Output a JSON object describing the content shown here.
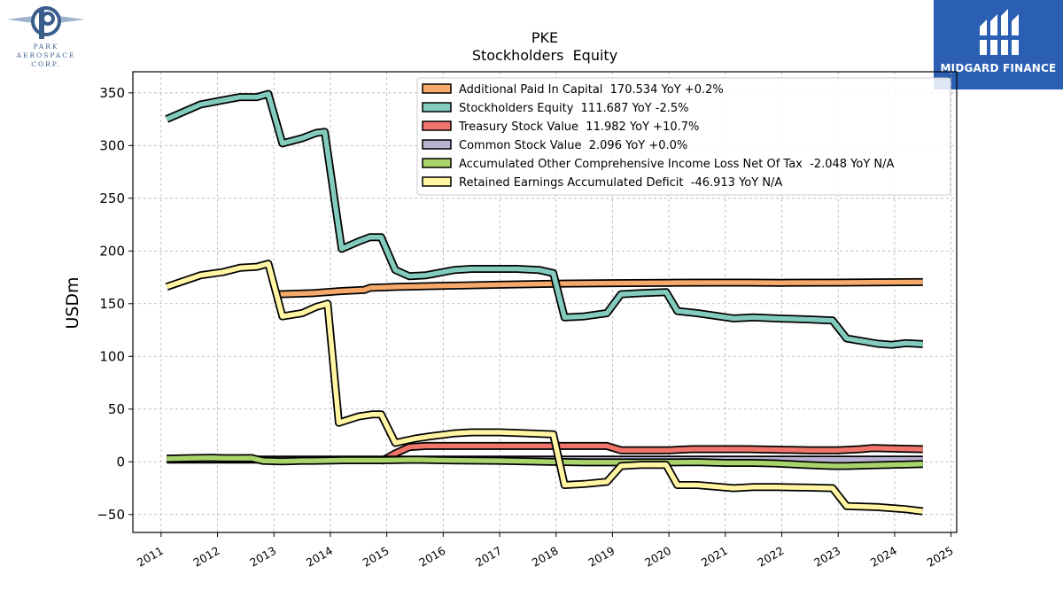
{
  "logos": {
    "left_lines": [
      "PARK",
      "AEROSPACE",
      "CORP."
    ],
    "right_text": "MIDGARD FINANCE"
  },
  "colors": {
    "apic": "#f5a96a",
    "se": "#82cbbd",
    "treasury": "#f0766c",
    "common": "#b7b0d0",
    "aoci": "#a9d46b",
    "re": "#fff5a3",
    "brand_blue": "#2b5fb4"
  },
  "chart_data": {
    "type": "line",
    "title": "PKE",
    "subtitle": "Stockholders  Equity",
    "xlabel": "",
    "ylabel": "USDm",
    "xlim": [
      2010.5,
      2025.1
    ],
    "ylim": [
      -67,
      370
    ],
    "x_ticks": [
      2011,
      2012,
      2013,
      2014,
      2015,
      2016,
      2017,
      2018,
      2019,
      2020,
      2021,
      2022,
      2023,
      2024,
      2025
    ],
    "y_ticks": [
      -50,
      0,
      50,
      100,
      150,
      200,
      250,
      300,
      350
    ],
    "grid": true,
    "legend_position": "top-right",
    "series": [
      {
        "name": "Additional Paid In Capital  170.534 YoY +0.2%",
        "color_key": "apic",
        "points": [
          [
            2013.1,
            159
          ],
          [
            2013.7,
            160
          ],
          [
            2014.2,
            162
          ],
          [
            2014.6,
            163
          ],
          [
            2014.7,
            165
          ],
          [
            2015.2,
            166
          ],
          [
            2016,
            167
          ],
          [
            2017,
            168
          ],
          [
            2018,
            169
          ],
          [
            2019,
            169.5
          ],
          [
            2020,
            169.8
          ],
          [
            2021,
            170
          ],
          [
            2021.4,
            170
          ],
          [
            2022,
            169.8
          ],
          [
            2023,
            170
          ],
          [
            2024.5,
            170.5
          ]
        ]
      },
      {
        "name": "Stockholders Equity  111.687 YoY -2.5%",
        "color_key": "se",
        "points": [
          [
            2011.1,
            325
          ],
          [
            2011.7,
            339
          ],
          [
            2012.1,
            343
          ],
          [
            2012.4,
            346
          ],
          [
            2012.7,
            346
          ],
          [
            2012.9,
            349
          ],
          [
            2013.15,
            302
          ],
          [
            2013.5,
            307
          ],
          [
            2013.75,
            312
          ],
          [
            2013.9,
            313
          ],
          [
            2014.2,
            202
          ],
          [
            2014.5,
            209
          ],
          [
            2014.7,
            213
          ],
          [
            2014.9,
            213
          ],
          [
            2015.15,
            182
          ],
          [
            2015.4,
            176
          ],
          [
            2015.7,
            177
          ],
          [
            2016.2,
            182
          ],
          [
            2016.5,
            183
          ],
          [
            2017,
            183
          ],
          [
            2017.3,
            183
          ],
          [
            2017.7,
            182
          ],
          [
            2017.95,
            179
          ],
          [
            2018.15,
            137
          ],
          [
            2018.5,
            138
          ],
          [
            2018.9,
            141
          ],
          [
            2019.15,
            159
          ],
          [
            2019.5,
            160
          ],
          [
            2019.95,
            161
          ],
          [
            2020.15,
            143
          ],
          [
            2020.5,
            141
          ],
          [
            2021.15,
            136
          ],
          [
            2021.5,
            137
          ],
          [
            2021.9,
            136
          ],
          [
            2022.5,
            135
          ],
          [
            2022.9,
            134
          ],
          [
            2023.15,
            117
          ],
          [
            2023.7,
            112
          ],
          [
            2023.95,
            111
          ],
          [
            2024.2,
            112.5
          ],
          [
            2024.5,
            111.7
          ]
        ]
      },
      {
        "name": "Treasury Stock Value  11.982 YoY +10.7%",
        "color_key": "treasury",
        "points": [
          [
            2014.9,
            0.5
          ],
          [
            2015.15,
            8
          ],
          [
            2015.4,
            14
          ],
          [
            2015.7,
            15
          ],
          [
            2016.2,
            15
          ],
          [
            2017,
            15
          ],
          [
            2018,
            15
          ],
          [
            2018.5,
            15
          ],
          [
            2018.9,
            15
          ],
          [
            2019.15,
            11
          ],
          [
            2019.5,
            11
          ],
          [
            2020,
            11
          ],
          [
            2020.4,
            12
          ],
          [
            2021,
            12
          ],
          [
            2021.4,
            12
          ],
          [
            2021.9,
            11.5
          ],
          [
            2022.5,
            11
          ],
          [
            2023,
            11
          ],
          [
            2023.4,
            12
          ],
          [
            2023.6,
            13
          ],
          [
            2024.5,
            12
          ]
        ]
      },
      {
        "name": "Common Stock Value  2.096 YoY +0.0%",
        "color_key": "common",
        "points": [
          [
            2011.1,
            2.1
          ],
          [
            2014.9,
            2.1
          ],
          [
            2016,
            2.1
          ],
          [
            2018,
            2.1
          ],
          [
            2020,
            2.1
          ],
          [
            2022,
            2.1
          ],
          [
            2024.5,
            2.1
          ]
        ]
      },
      {
        "name": "Accumulated Other Comprehensive Income Loss Net Of Tax  -2.048 YoY N/A",
        "color_key": "aoci",
        "points": [
          [
            2011.1,
            3
          ],
          [
            2011.5,
            3.5
          ],
          [
            2011.9,
            3.8
          ],
          [
            2012.1,
            3.5
          ],
          [
            2012.4,
            3.5
          ],
          [
            2012.6,
            3.6
          ],
          [
            2012.8,
            1
          ],
          [
            2013.15,
            0.5
          ],
          [
            2013.5,
            1
          ],
          [
            2013.7,
            1
          ],
          [
            2014.2,
            1.5
          ],
          [
            2014.9,
            1.5
          ],
          [
            2015.5,
            2
          ],
          [
            2016,
            1.5
          ],
          [
            2017,
            1
          ],
          [
            2017.5,
            0.5
          ],
          [
            2017.9,
            0
          ],
          [
            2018.5,
            -0.5
          ],
          [
            2019,
            -0.5
          ],
          [
            2019.5,
            -0.5
          ],
          [
            2020,
            -0.5
          ],
          [
            2020.5,
            -0.3
          ],
          [
            2021,
            -1
          ],
          [
            2021.5,
            -1
          ],
          [
            2021.9,
            -1.5
          ],
          [
            2022.4,
            -3
          ],
          [
            2022.9,
            -4
          ],
          [
            2023.15,
            -4
          ],
          [
            2023.5,
            -3.5
          ],
          [
            2023.9,
            -3
          ],
          [
            2024.5,
            -2
          ]
        ]
      },
      {
        "name": "Retained Earnings Accumulated Deficit  -46.913 YoY N/A",
        "color_key": "re",
        "points": [
          [
            2011.1,
            166
          ],
          [
            2011.7,
            177
          ],
          [
            2012.1,
            180
          ],
          [
            2012.4,
            184
          ],
          [
            2012.7,
            185
          ],
          [
            2012.9,
            188
          ],
          [
            2013.15,
            138
          ],
          [
            2013.5,
            141
          ],
          [
            2013.75,
            147
          ],
          [
            2013.95,
            150
          ],
          [
            2014.15,
            37
          ],
          [
            2014.5,
            43
          ],
          [
            2014.75,
            45
          ],
          [
            2014.9,
            45
          ],
          [
            2015.15,
            18
          ],
          [
            2015.5,
            22
          ],
          [
            2015.75,
            24
          ],
          [
            2016.2,
            27
          ],
          [
            2016.5,
            28
          ],
          [
            2017,
            28
          ],
          [
            2017.5,
            27
          ],
          [
            2017.95,
            26
          ],
          [
            2018.15,
            -22
          ],
          [
            2018.5,
            -21
          ],
          [
            2018.9,
            -19
          ],
          [
            2019.15,
            -4
          ],
          [
            2019.5,
            -3
          ],
          [
            2019.95,
            -3
          ],
          [
            2020.15,
            -22
          ],
          [
            2020.5,
            -22
          ],
          [
            2021.15,
            -25
          ],
          [
            2021.5,
            -24
          ],
          [
            2021.9,
            -24
          ],
          [
            2022.5,
            -24.5
          ],
          [
            2022.9,
            -25
          ],
          [
            2023.15,
            -42
          ],
          [
            2023.7,
            -43
          ],
          [
            2024.2,
            -45
          ],
          [
            2024.5,
            -46.9
          ]
        ]
      }
    ]
  }
}
